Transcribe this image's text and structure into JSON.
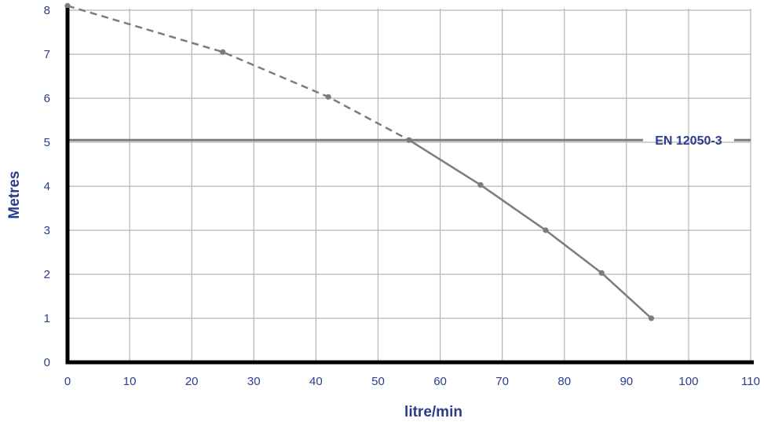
{
  "chart_data": {
    "type": "line",
    "title": "",
    "xlabel": "litre/min",
    "ylabel": "Metres",
    "xlim": [
      0,
      110
    ],
    "ylim": [
      0,
      8
    ],
    "x_ticks": [
      0,
      10,
      20,
      30,
      40,
      50,
      60,
      70,
      80,
      90,
      100,
      110
    ],
    "y_ticks": [
      0,
      1,
      2,
      3,
      4,
      5,
      6,
      7,
      8
    ],
    "grid": true,
    "series": [
      {
        "name": "",
        "style": "dashed",
        "points": [
          {
            "x": 0,
            "y": 8.1
          },
          {
            "x": 25,
            "y": 7.05
          },
          {
            "x": 42,
            "y": 6.03
          },
          {
            "x": 55,
            "y": 5.05
          }
        ]
      },
      {
        "name": "",
        "style": "solid",
        "points": [
          {
            "x": 55,
            "y": 5.05
          },
          {
            "x": 66.5,
            "y": 4.03
          },
          {
            "x": 77,
            "y": 3.0
          },
          {
            "x": 86,
            "y": 2.03
          },
          {
            "x": 94,
            "y": 1.0
          }
        ]
      }
    ],
    "reference_line": {
      "y": 5.05,
      "label": "EN 12050-3",
      "label_x": 100
    },
    "colors": {
      "axis": "#000000",
      "grid": "#b4b4b4",
      "curve": "#7c7c7c",
      "reference": "#7c7c7c",
      "text": "#2b3c8c"
    }
  }
}
